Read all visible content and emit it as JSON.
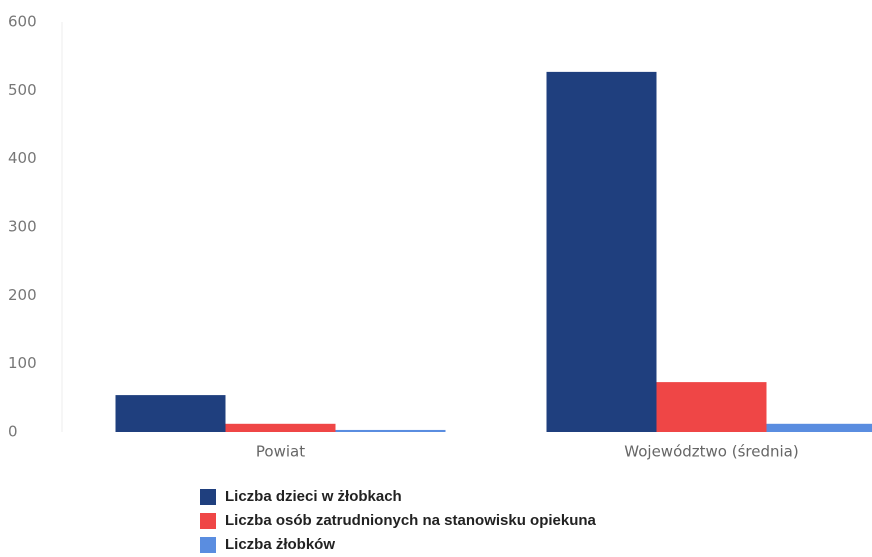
{
  "chart_data": {
    "type": "bar",
    "categories": [
      "Powiat",
      "Województwo (średnia)"
    ],
    "series": [
      {
        "name": "Liczba dzieci w żłobkach",
        "color": "#1f3f7e",
        "values": [
          54,
          527
        ]
      },
      {
        "name": "Liczba osób zatrudnionych na stanowisku opiekuna",
        "color": "#ef4646",
        "values": [
          12,
          73
        ]
      },
      {
        "name": "Liczba żłobków",
        "color": "#5a8de0",
        "values": [
          3,
          12
        ]
      }
    ],
    "ylim": [
      0,
      600
    ],
    "yticks": [
      0,
      100,
      200,
      300,
      400,
      500,
      600
    ],
    "grid": false,
    "legend": "bottom"
  }
}
